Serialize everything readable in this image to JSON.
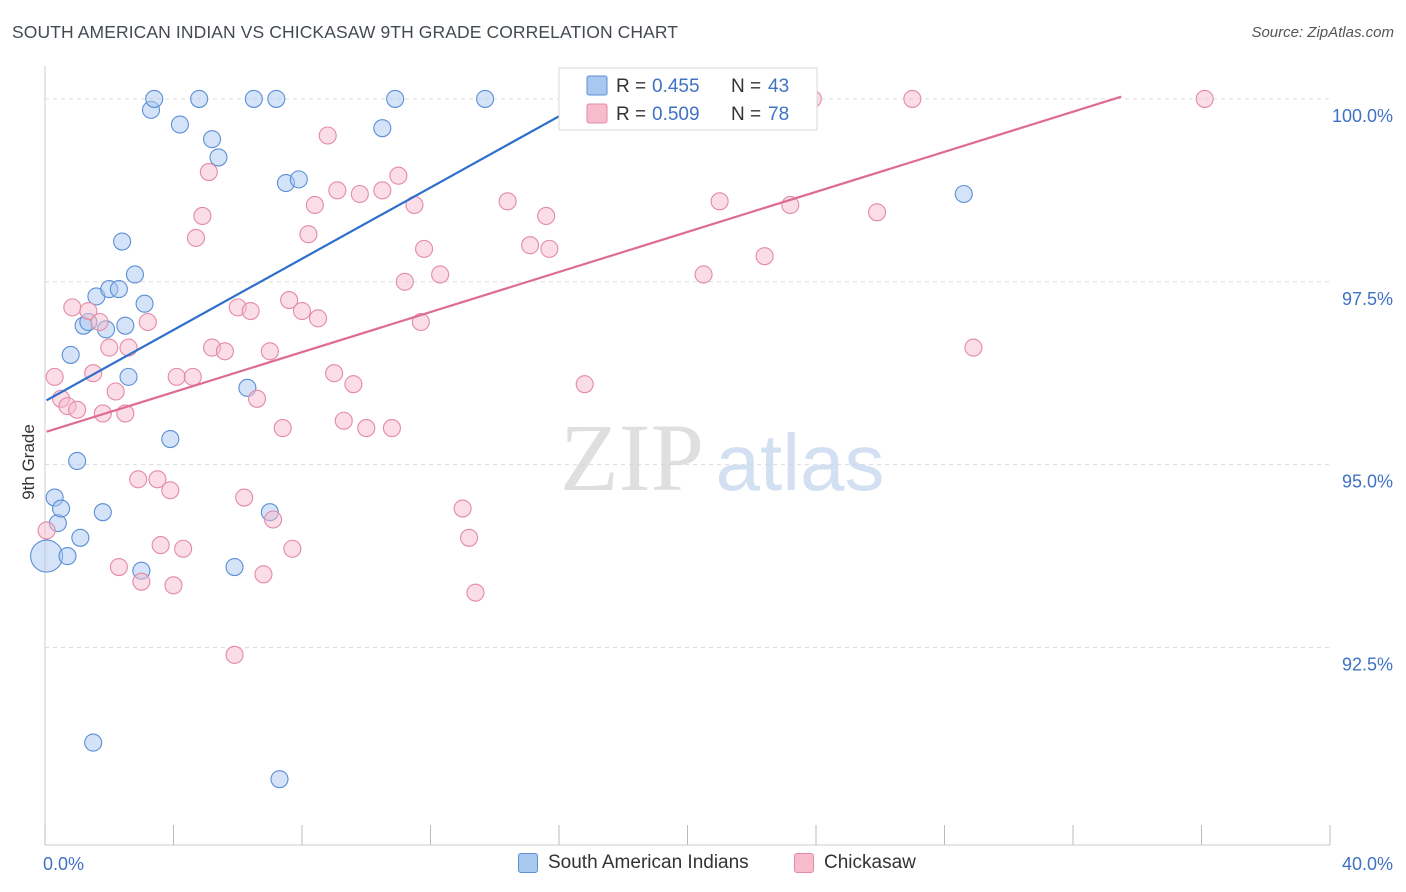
{
  "title": "SOUTH AMERICAN INDIAN VS CHICKASAW 9TH GRADE CORRELATION CHART",
  "source": "Source: ZipAtlas.com",
  "watermark": {
    "zip": "ZIP",
    "atlas": "atlas"
  },
  "colors": {
    "blue_fill": "#a9c8ef",
    "blue_stroke": "#5b8fd6",
    "blue_line": "#2d6fcc",
    "pink_fill": "#f6bccd",
    "pink_stroke": "#e48aa6",
    "pink_line": "#de6c92",
    "axis_label": "#3f72c4",
    "grid": "#dddddd"
  },
  "stats_legend": {
    "rows": [
      {
        "r_label": "R = ",
        "r_value": "0.455",
        "n_label": "N = ",
        "n_value": "43",
        "series": "blue"
      },
      {
        "r_label": "R = ",
        "r_value": "0.509",
        "n_label": "N = ",
        "n_value": "78",
        "series": "pink"
      }
    ]
  },
  "chart_data": {
    "type": "scatter",
    "title": "SOUTH AMERICAN INDIAN VS CHICKASAW 9TH GRADE CORRELATION CHART",
    "xlabel": "",
    "ylabel": "9th Grade",
    "xlim": [
      0,
      40
    ],
    "ylim": [
      89.8,
      100.45
    ],
    "x_tick_labels": [
      "0.0%",
      "40.0%"
    ],
    "y_ticks": [
      {
        "value": 92.5,
        "label": "92.5%"
      },
      {
        "value": 95.0,
        "label": "95.0%"
      },
      {
        "value": 97.5,
        "label": "97.5%"
      },
      {
        "value": 100.0,
        "label": "100.0%"
      }
    ],
    "grid": true,
    "legend_position": "bottom",
    "series": [
      {
        "name": "South American Indians",
        "color": "blue",
        "trend": {
          "x0": 0.05,
          "y0": 95.88,
          "x1": 17.1,
          "y1": 100.03
        },
        "points": [
          [
            0.05,
            93.75
          ],
          [
            0.3,
            94.55
          ],
          [
            0.4,
            94.2
          ],
          [
            0.5,
            94.4
          ],
          [
            0.7,
            93.75
          ],
          [
            0.8,
            96.5
          ],
          [
            1.0,
            95.05
          ],
          [
            1.1,
            94.0
          ],
          [
            1.2,
            96.9
          ],
          [
            1.35,
            96.95
          ],
          [
            1.6,
            97.3
          ],
          [
            1.8,
            94.35
          ],
          [
            1.9,
            96.85
          ],
          [
            2.0,
            97.4
          ],
          [
            2.3,
            97.4
          ],
          [
            2.4,
            98.05
          ],
          [
            2.5,
            96.9
          ],
          [
            2.6,
            96.2
          ],
          [
            2.8,
            97.6
          ],
          [
            3.0,
            93.55
          ],
          [
            3.1,
            97.2
          ],
          [
            3.3,
            99.85
          ],
          [
            3.4,
            100.0
          ],
          [
            3.9,
            95.35
          ],
          [
            4.2,
            99.65
          ],
          [
            4.8,
            100.0
          ],
          [
            5.2,
            99.45
          ],
          [
            5.4,
            99.2
          ],
          [
            5.9,
            93.6
          ],
          [
            6.3,
            96.05
          ],
          [
            6.5,
            100.0
          ],
          [
            7.0,
            94.35
          ],
          [
            7.2,
            100.0
          ],
          [
            7.5,
            98.85
          ],
          [
            7.9,
            98.9
          ],
          [
            10.5,
            99.6
          ],
          [
            10.9,
            100.0
          ],
          [
            13.7,
            100.0
          ],
          [
            17.5,
            100.0
          ],
          [
            22.4,
            100.0
          ],
          [
            28.6,
            98.7
          ],
          [
            1.5,
            91.2
          ],
          [
            7.3,
            90.7
          ]
        ]
      },
      {
        "name": "Chickasaw",
        "color": "pink",
        "trend": {
          "x0": 0.05,
          "y0": 95.45,
          "x1": 33.5,
          "y1": 100.03
        },
        "points": [
          [
            0.05,
            94.1
          ],
          [
            0.3,
            96.2
          ],
          [
            0.5,
            95.9
          ],
          [
            0.7,
            95.8
          ],
          [
            0.85,
            97.15
          ],
          [
            1.0,
            95.75
          ],
          [
            1.35,
            97.1
          ],
          [
            1.5,
            96.25
          ],
          [
            1.7,
            96.95
          ],
          [
            1.8,
            95.7
          ],
          [
            2.0,
            96.6
          ],
          [
            2.2,
            96.0
          ],
          [
            2.3,
            93.6
          ],
          [
            2.5,
            95.7
          ],
          [
            2.6,
            96.6
          ],
          [
            2.9,
            94.8
          ],
          [
            3.0,
            93.4
          ],
          [
            3.2,
            96.95
          ],
          [
            3.5,
            94.8
          ],
          [
            3.6,
            93.9
          ],
          [
            3.9,
            94.65
          ],
          [
            4.0,
            93.35
          ],
          [
            4.1,
            96.2
          ],
          [
            4.3,
            93.85
          ],
          [
            4.6,
            96.2
          ],
          [
            4.7,
            98.1
          ],
          [
            4.9,
            98.4
          ],
          [
            5.1,
            99.0
          ],
          [
            5.2,
            96.6
          ],
          [
            5.6,
            96.55
          ],
          [
            5.9,
            92.4
          ],
          [
            6.0,
            97.15
          ],
          [
            6.2,
            94.55
          ],
          [
            6.4,
            97.1
          ],
          [
            6.6,
            95.9
          ],
          [
            6.8,
            93.5
          ],
          [
            7.0,
            96.55
          ],
          [
            7.1,
            94.25
          ],
          [
            7.4,
            95.5
          ],
          [
            7.6,
            97.25
          ],
          [
            7.7,
            93.85
          ],
          [
            8.0,
            97.1
          ],
          [
            8.2,
            98.15
          ],
          [
            8.4,
            98.55
          ],
          [
            8.5,
            97.0
          ],
          [
            8.8,
            99.5
          ],
          [
            9.0,
            96.25
          ],
          [
            9.1,
            98.75
          ],
          [
            9.3,
            95.6
          ],
          [
            9.6,
            96.1
          ],
          [
            9.8,
            98.7
          ],
          [
            10.0,
            95.5
          ],
          [
            10.5,
            98.75
          ],
          [
            10.8,
            95.5
          ],
          [
            11.0,
            98.95
          ],
          [
            11.2,
            97.5
          ],
          [
            11.5,
            98.55
          ],
          [
            11.7,
            96.95
          ],
          [
            11.8,
            97.95
          ],
          [
            12.3,
            97.6
          ],
          [
            13.0,
            94.4
          ],
          [
            13.2,
            94.0
          ],
          [
            13.4,
            93.25
          ],
          [
            14.4,
            98.6
          ],
          [
            15.1,
            98.0
          ],
          [
            15.6,
            98.4
          ],
          [
            15.7,
            97.95
          ],
          [
            16.6,
            100.0
          ],
          [
            16.8,
            96.1
          ],
          [
            20.5,
            97.6
          ],
          [
            21.0,
            98.6
          ],
          [
            22.4,
            97.85
          ],
          [
            23.2,
            98.55
          ],
          [
            23.9,
            100.0
          ],
          [
            25.9,
            98.45
          ],
          [
            27.0,
            100.0
          ],
          [
            28.9,
            96.6
          ],
          [
            36.1,
            100.0
          ]
        ]
      }
    ]
  }
}
